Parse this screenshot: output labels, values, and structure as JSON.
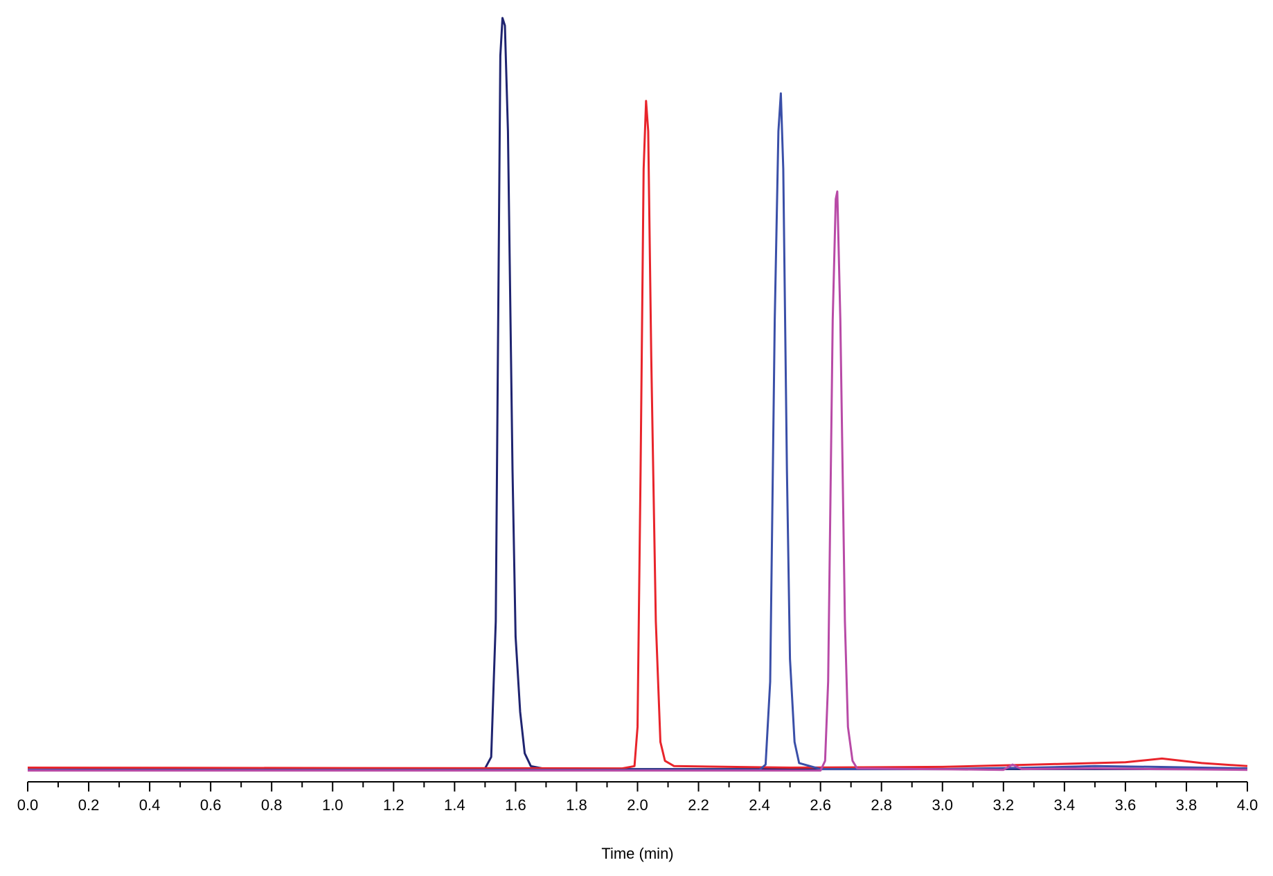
{
  "chart_data": {
    "type": "line",
    "title": "",
    "xlabel": "Time (min)",
    "ylabel": "",
    "xlim": [
      0.0,
      4.0
    ],
    "ylim": [
      0,
      100
    ],
    "grid": false,
    "x_ticks": [
      "0.0",
      "0.2",
      "0.4",
      "0.6",
      "0.8",
      "1.0",
      "1.2",
      "1.4",
      "1.6",
      "1.8",
      "2.0",
      "2.2",
      "2.4",
      "2.6",
      "2.8",
      "3.0",
      "3.2",
      "3.4",
      "3.6",
      "3.8",
      "4.0"
    ],
    "x_minor_step": 0.1,
    "series": [
      {
        "color": "#1f2470",
        "points": [
          [
            0.0,
            0.3
          ],
          [
            1.45,
            0.4
          ],
          [
            1.5,
            0.5
          ],
          [
            1.52,
            2
          ],
          [
            1.535,
            20
          ],
          [
            1.545,
            70
          ],
          [
            1.55,
            95
          ],
          [
            1.557,
            100
          ],
          [
            1.565,
            99
          ],
          [
            1.575,
            85
          ],
          [
            1.59,
            40
          ],
          [
            1.6,
            18
          ],
          [
            1.615,
            8
          ],
          [
            1.63,
            2.5
          ],
          [
            1.65,
            0.8
          ],
          [
            1.7,
            0.4
          ],
          [
            4.0,
            0.4
          ]
        ]
      },
      {
        "color": "#e8242b",
        "points": [
          [
            0.0,
            0.6
          ],
          [
            1.95,
            0.5
          ],
          [
            1.99,
            0.8
          ],
          [
            2.0,
            6
          ],
          [
            2.01,
            40
          ],
          [
            2.02,
            80
          ],
          [
            2.028,
            89
          ],
          [
            2.035,
            85
          ],
          [
            2.045,
            55
          ],
          [
            2.06,
            20
          ],
          [
            2.075,
            4
          ],
          [
            2.09,
            1.5
          ],
          [
            2.12,
            0.8
          ],
          [
            2.5,
            0.6
          ],
          [
            3.0,
            0.7
          ],
          [
            3.3,
            1.0
          ],
          [
            3.6,
            1.3
          ],
          [
            3.72,
            1.8
          ],
          [
            3.85,
            1.2
          ],
          [
            4.0,
            0.8
          ]
        ]
      },
      {
        "color": "#3a4fa8",
        "points": [
          [
            0.0,
            0.3
          ],
          [
            2.4,
            0.3
          ],
          [
            2.42,
            1
          ],
          [
            2.435,
            12
          ],
          [
            2.45,
            60
          ],
          [
            2.462,
            85
          ],
          [
            2.47,
            90
          ],
          [
            2.478,
            80
          ],
          [
            2.49,
            40
          ],
          [
            2.5,
            15
          ],
          [
            2.515,
            4
          ],
          [
            2.53,
            1.2
          ],
          [
            2.6,
            0.4
          ],
          [
            3.0,
            0.4
          ],
          [
            3.3,
            0.6
          ],
          [
            3.5,
            0.8
          ],
          [
            3.7,
            0.7
          ],
          [
            4.0,
            0.5
          ]
        ]
      },
      {
        "color": "#b84aa6",
        "points": [
          [
            0.0,
            0.2
          ],
          [
            2.6,
            0.2
          ],
          [
            2.615,
            1.5
          ],
          [
            2.625,
            12
          ],
          [
            2.64,
            60
          ],
          [
            2.65,
            76
          ],
          [
            2.655,
            77
          ],
          [
            2.665,
            60
          ],
          [
            2.68,
            20
          ],
          [
            2.69,
            6
          ],
          [
            2.705,
            1.5
          ],
          [
            2.72,
            0.5
          ],
          [
            3.2,
            0.3
          ],
          [
            3.23,
            1.0
          ],
          [
            3.26,
            0.4
          ],
          [
            3.5,
            0.5
          ],
          [
            3.7,
            0.4
          ],
          [
            4.0,
            0.3
          ]
        ]
      }
    ]
  }
}
